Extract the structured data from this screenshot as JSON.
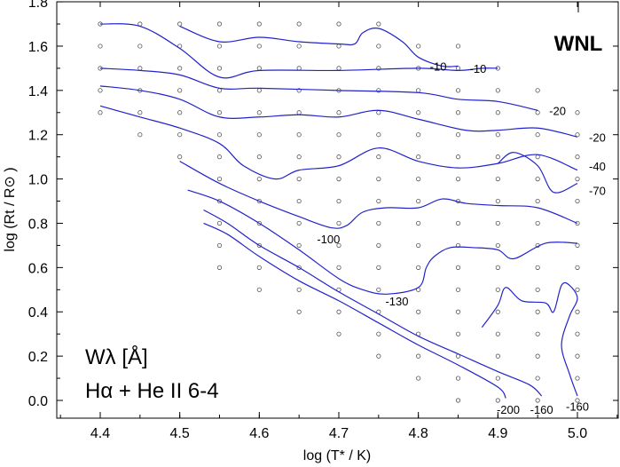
{
  "chart_data": {
    "type": "contour",
    "title": "WNL",
    "annotation_lines": [
      "Wλ [Å]",
      "Hα + He II 6-4"
    ],
    "xlabel": "log (T* / K)",
    "ylabel": "log (Rt / R⊙ )",
    "xlim": [
      4.35,
      5.05
    ],
    "ylim": [
      -0.08,
      1.8
    ],
    "xticks": [
      4.4,
      4.5,
      4.6,
      4.7,
      4.8,
      4.9,
      5.0
    ],
    "xtick_labels": [
      "4.4",
      "4.5",
      "4.6",
      "4.7",
      "4.8",
      "4.9",
      "5.0"
    ],
    "yticks": [
      0.0,
      0.2,
      0.4,
      0.6,
      0.8,
      1.0,
      1.2,
      1.4,
      1.6,
      1.8
    ],
    "ytick_labels": [
      "0.0",
      "0.2",
      "0.4",
      "0.6",
      "0.8",
      "1.0",
      "1.2",
      "1.4",
      "1.6",
      "1.8"
    ],
    "grid": false,
    "line_color": "#2222cc",
    "contours": [
      {
        "level": "-10",
        "points": [
          [
            4.5,
            1.69
          ],
          [
            4.55,
            1.62
          ],
          [
            4.6,
            1.64
          ],
          [
            4.65,
            1.62
          ],
          [
            4.7,
            1.61
          ],
          [
            4.72,
            1.61
          ],
          [
            4.73,
            1.66
          ],
          [
            4.75,
            1.68
          ],
          [
            4.78,
            1.62
          ],
          [
            4.8,
            1.55
          ],
          [
            4.83,
            1.51
          ],
          [
            4.85,
            1.51
          ]
        ]
      },
      {
        "level": "-10",
        "points": [
          [
            4.4,
            1.7
          ],
          [
            4.45,
            1.69
          ],
          [
            4.5,
            1.59
          ],
          [
            4.55,
            1.46
          ],
          [
            4.6,
            1.49
          ],
          [
            4.7,
            1.49
          ],
          [
            4.8,
            1.5
          ],
          [
            4.85,
            1.49
          ],
          [
            4.88,
            1.5
          ],
          [
            4.9,
            1.5
          ]
        ]
      },
      {
        "level": "-20",
        "points": [
          [
            4.4,
            1.5
          ],
          [
            4.45,
            1.49
          ],
          [
            4.5,
            1.47
          ],
          [
            4.55,
            1.41
          ],
          [
            4.6,
            1.41
          ],
          [
            4.7,
            1.4
          ],
          [
            4.8,
            1.39
          ],
          [
            4.85,
            1.36
          ],
          [
            4.9,
            1.35
          ],
          [
            4.95,
            1.31
          ]
        ]
      },
      {
        "level": "-20",
        "points": [
          [
            4.4,
            1.42
          ],
          [
            4.45,
            1.4
          ],
          [
            4.5,
            1.36
          ],
          [
            4.55,
            1.28
          ],
          [
            4.6,
            1.28
          ],
          [
            4.65,
            1.29
          ],
          [
            4.7,
            1.28
          ],
          [
            4.75,
            1.31
          ],
          [
            4.8,
            1.27
          ],
          [
            4.86,
            1.22
          ],
          [
            4.9,
            1.22
          ],
          [
            4.95,
            1.23
          ],
          [
            5.0,
            1.19
          ]
        ]
      },
      {
        "level": "-40",
        "points": [
          [
            4.4,
            1.33
          ],
          [
            4.45,
            1.28
          ],
          [
            4.5,
            1.23
          ],
          [
            4.55,
            1.16
          ],
          [
            4.58,
            1.06
          ],
          [
            4.62,
            1.0
          ],
          [
            4.65,
            1.04
          ],
          [
            4.7,
            1.06
          ],
          [
            4.75,
            1.14
          ],
          [
            4.8,
            1.08
          ],
          [
            4.85,
            1.05
          ],
          [
            4.9,
            1.07
          ],
          [
            4.95,
            1.11
          ],
          [
            5.0,
            1.04
          ]
        ]
      },
      {
        "level": "-70",
        "points": [
          [
            4.9,
            1.07
          ],
          [
            4.92,
            1.12
          ],
          [
            4.95,
            1.06
          ],
          [
            4.97,
            0.94
          ],
          [
            5.0,
            0.98
          ]
        ]
      },
      {
        "level": "-100",
        "points": [
          [
            4.5,
            1.08
          ],
          [
            4.55,
            0.98
          ],
          [
            4.6,
            0.9
          ],
          [
            4.65,
            0.83
          ],
          [
            4.69,
            0.78
          ],
          [
            4.71,
            0.79
          ],
          [
            4.73,
            0.85
          ],
          [
            4.76,
            0.87
          ],
          [
            4.8,
            0.87
          ],
          [
            4.83,
            0.91
          ],
          [
            4.86,
            0.89
          ],
          [
            4.9,
            0.88
          ],
          [
            4.95,
            0.87
          ],
          [
            5.0,
            0.8
          ]
        ]
      },
      {
        "level": "-130",
        "points": [
          [
            4.51,
            0.95
          ],
          [
            4.55,
            0.9
          ],
          [
            4.6,
            0.8
          ],
          [
            4.65,
            0.68
          ],
          [
            4.7,
            0.55
          ],
          [
            4.73,
            0.5
          ],
          [
            4.76,
            0.48
          ],
          [
            4.8,
            0.51
          ],
          [
            4.81,
            0.6
          ],
          [
            4.82,
            0.65
          ],
          [
            4.84,
            0.69
          ],
          [
            4.87,
            0.69
          ],
          [
            4.9,
            0.68
          ],
          [
            4.92,
            0.64
          ],
          [
            4.96,
            0.71
          ],
          [
            5.0,
            0.71
          ]
        ]
      },
      {
        "level": "-160",
        "points": [
          [
            4.53,
            0.86
          ],
          [
            4.56,
            0.8
          ],
          [
            4.6,
            0.7
          ],
          [
            4.65,
            0.6
          ],
          [
            4.7,
            0.49
          ],
          [
            4.75,
            0.39
          ],
          [
            4.8,
            0.29
          ],
          [
            4.85,
            0.21
          ],
          [
            4.9,
            0.13
          ],
          [
            4.94,
            0.07
          ],
          [
            4.955,
            0.02
          ]
        ]
      },
      {
        "level": "-160",
        "points": [
          [
            4.88,
            0.33
          ],
          [
            4.9,
            0.43
          ],
          [
            4.91,
            0.51
          ],
          [
            4.93,
            0.45
          ],
          [
            4.96,
            0.44
          ],
          [
            4.97,
            0.4
          ],
          [
            4.98,
            0.52
          ],
          [
            4.99,
            0.52
          ],
          [
            5.0,
            0.46
          ],
          [
            4.99,
            0.38
          ],
          [
            4.98,
            0.25
          ],
          [
            4.99,
            0.12
          ],
          [
            5.0,
            0.02
          ]
        ]
      },
      {
        "level": "-200",
        "points": [
          [
            4.53,
            0.8
          ],
          [
            4.56,
            0.75
          ],
          [
            4.6,
            0.65
          ],
          [
            4.65,
            0.54
          ],
          [
            4.7,
            0.45
          ],
          [
            4.75,
            0.35
          ],
          [
            4.8,
            0.25
          ],
          [
            4.85,
            0.16
          ],
          [
            4.9,
            0.06
          ],
          [
            4.91,
            0.01
          ]
        ]
      }
    ],
    "contour_labels": [
      {
        "text": "-10",
        "x": 4.825,
        "y": 1.505
      },
      {
        "text": "-10",
        "x": 4.875,
        "y": 1.495
      },
      {
        "text": "-20",
        "x": 4.975,
        "y": 1.305
      },
      {
        "text": "-20",
        "x": 5.025,
        "y": 1.185
      },
      {
        "text": "-40",
        "x": 5.025,
        "y": 1.055
      },
      {
        "text": "-70",
        "x": 5.025,
        "y": 0.945
      },
      {
        "text": "-100",
        "x": 4.687,
        "y": 0.725
      },
      {
        "text": "-130",
        "x": 4.773,
        "y": 0.445
      },
      {
        "text": "-200",
        "x": 4.913,
        "y": -0.045
      },
      {
        "text": "-160",
        "x": 4.955,
        "y": -0.045
      },
      {
        "text": "-160",
        "x": 5.0,
        "y": -0.03
      }
    ],
    "grid_points": {
      "columns": [
        {
          "x": 4.4,
          "y": [
            1.7,
            1.6,
            1.5,
            1.4,
            1.3
          ]
        },
        {
          "x": 4.45,
          "y": [
            1.7,
            1.6,
            1.5,
            1.4,
            1.3,
            1.2
          ]
        },
        {
          "x": 4.5,
          "y": [
            1.7,
            1.6,
            1.5,
            1.4,
            1.3,
            1.2,
            1.1
          ]
        },
        {
          "x": 4.55,
          "y": [
            1.7,
            1.6,
            1.5,
            1.4,
            1.3,
            1.2,
            1.1,
            1.0,
            0.9,
            0.8,
            0.7,
            0.6
          ]
        },
        {
          "x": 4.6,
          "y": [
            1.7,
            1.6,
            1.5,
            1.4,
            1.3,
            1.2,
            1.1,
            1.0,
            0.9,
            0.8,
            0.7,
            0.6,
            0.5
          ]
        },
        {
          "x": 4.65,
          "y": [
            1.7,
            1.6,
            1.5,
            1.4,
            1.3,
            1.2,
            1.1,
            1.0,
            0.9,
            0.8,
            0.7,
            0.6,
            0.5,
            0.4
          ]
        },
        {
          "x": 4.7,
          "y": [
            1.7,
            1.6,
            1.5,
            1.4,
            1.3,
            1.2,
            1.1,
            1.0,
            0.9,
            0.8,
            0.7,
            0.6,
            0.5,
            0.4,
            0.3
          ]
        },
        {
          "x": 4.75,
          "y": [
            1.7,
            1.6,
            1.5,
            1.4,
            1.3,
            1.2,
            1.1,
            1.0,
            0.9,
            0.8,
            0.7,
            0.6,
            0.5,
            0.4,
            0.3,
            0.2
          ]
        },
        {
          "x": 4.8,
          "y": [
            1.6,
            1.5,
            1.4,
            1.3,
            1.2,
            1.1,
            1.0,
            0.9,
            0.8,
            0.7,
            0.6,
            0.5,
            0.4,
            0.3,
            0.2,
            0.1
          ]
        },
        {
          "x": 4.85,
          "y": [
            1.6,
            1.5,
            1.4,
            1.3,
            1.2,
            1.1,
            1.0,
            0.9,
            0.8,
            0.7,
            0.6,
            0.5,
            0.4,
            0.3,
            0.2,
            0.1,
            0.0
          ]
        },
        {
          "x": 4.9,
          "y": [
            1.5,
            1.4,
            1.3,
            1.2,
            1.1,
            1.0,
            0.9,
            0.8,
            0.7,
            0.6,
            0.5,
            0.4,
            0.3,
            0.2,
            0.1,
            0.0
          ]
        },
        {
          "x": 4.95,
          "y": [
            1.4,
            1.3,
            1.2,
            1.1,
            1.0,
            0.9,
            0.8,
            0.7,
            0.6,
            0.5,
            0.4,
            0.3,
            0.2,
            0.1,
            0.0
          ]
        },
        {
          "x": 5.0,
          "y": [
            1.3,
            1.2,
            1.1,
            1.0,
            0.9,
            0.8,
            0.7,
            0.6,
            0.5,
            0.4,
            0.3,
            0.2,
            0.1,
            0.0
          ]
        }
      ]
    }
  }
}
